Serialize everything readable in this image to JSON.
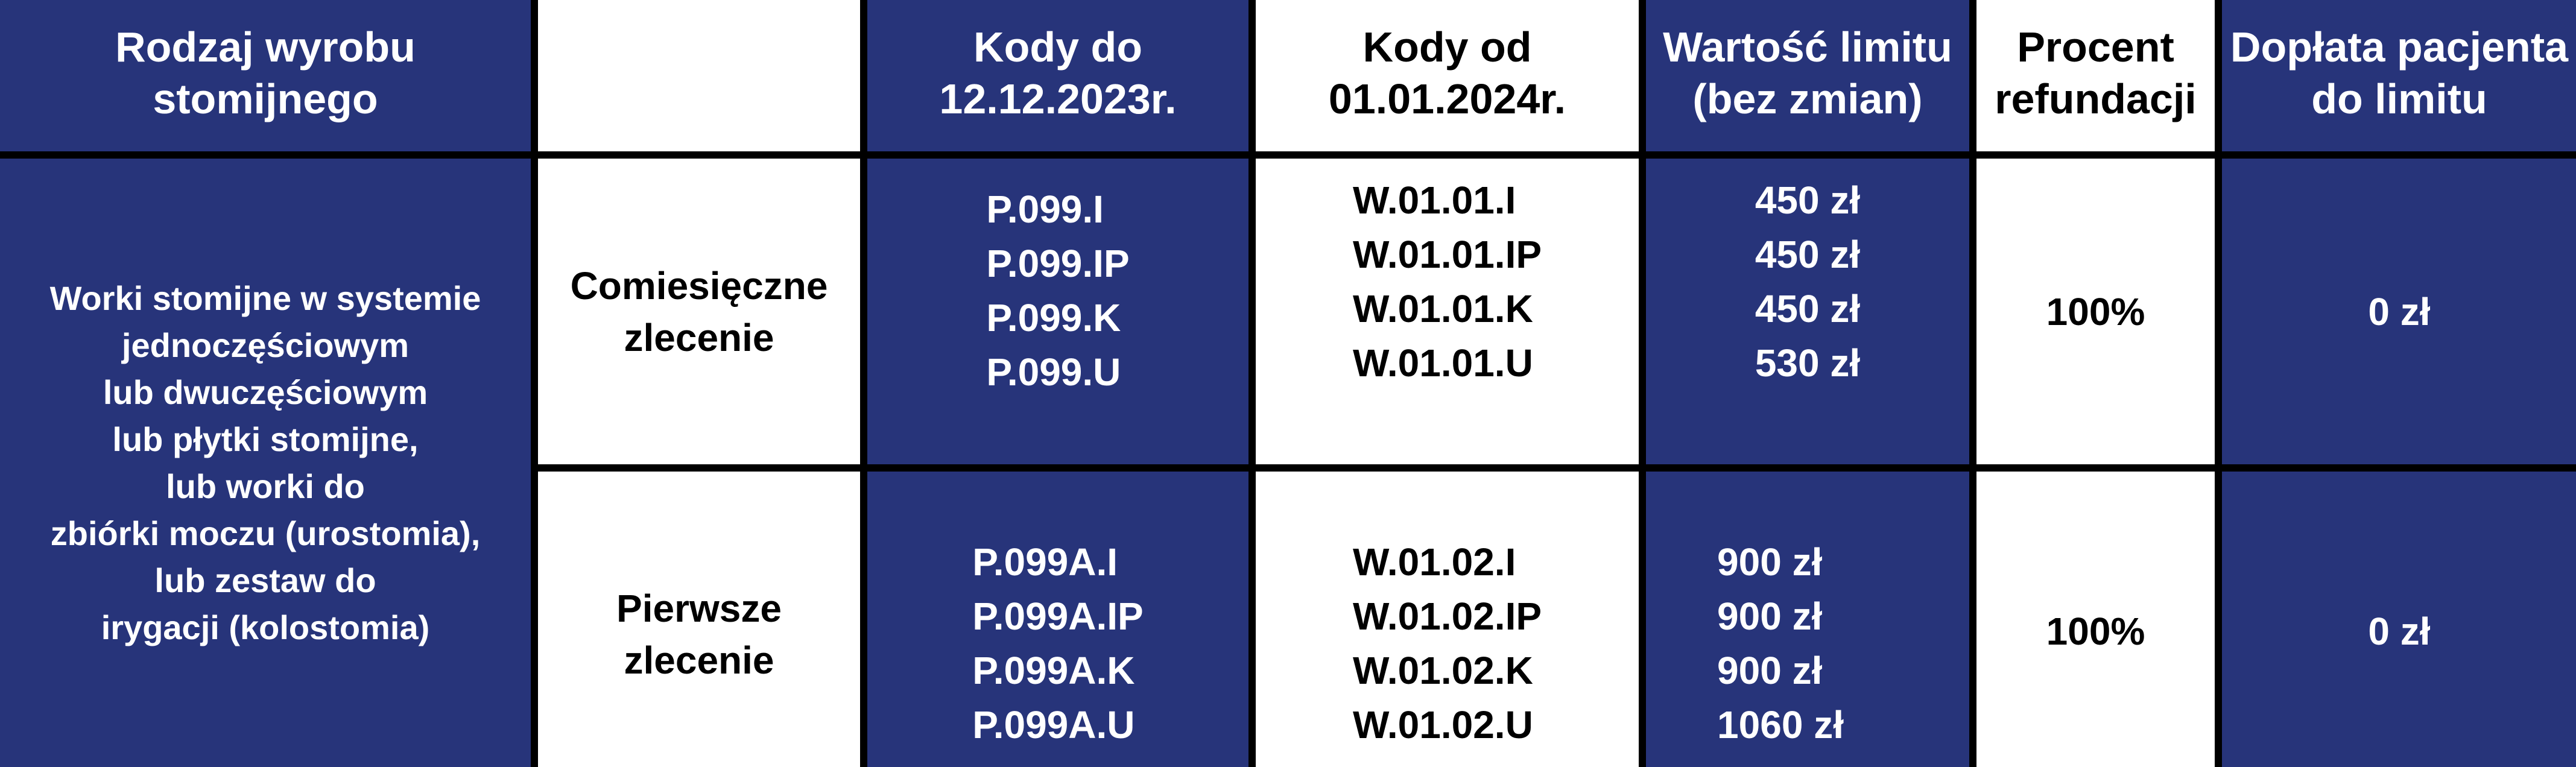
{
  "header": {
    "col1": [
      "Rodzaj wyrobu",
      "stomijnego"
    ],
    "col2": "",
    "col3": [
      "Kody do",
      "12.12.2023r."
    ],
    "col4": [
      "Kody od",
      "01.01.2024r."
    ],
    "col5": [
      "Wartość limitu",
      "(bez zmian)"
    ],
    "col6": [
      "Procent",
      "refundacji"
    ],
    "col7": [
      "Dopłata pacjenta",
      "do limitu"
    ]
  },
  "product_type": [
    "Worki stomijne w systemie",
    "jednoczęściowym",
    "lub dwuczęściowym",
    "lub płytki stomijne,",
    "lub worki do",
    "zbiórki moczu (urostomia),",
    "lub zestaw do",
    "irygacji (kolostomia)"
  ],
  "rows": [
    {
      "order": [
        "Comiesięczne",
        "zlecenie"
      ],
      "old_codes": [
        "P.099.I",
        "P.099.IP",
        "P.099.K",
        "P.099.U"
      ],
      "new_codes": [
        "W.01.01.I",
        "W.01.01.IP",
        "W.01.01.K",
        "W.01.01.U"
      ],
      "limits": [
        "450 zł",
        "450 zł",
        "450 zł",
        "530 zł"
      ],
      "refund": "100%",
      "copay": "0 zł"
    },
    {
      "order": [
        "Pierwsze",
        "zlecenie"
      ],
      "old_codes": [
        "P.099A.I",
        "P.099A.IP",
        "P.099A.K",
        "P.099A.U"
      ],
      "new_codes": [
        "W.01.02.I",
        "W.01.02.IP",
        "W.01.02.K",
        "W.01.02.U"
      ],
      "limits": [
        "900 zł",
        "900 zł",
        "900 zł",
        "1060 zł"
      ],
      "refund": "100%",
      "copay": "0 zł"
    }
  ],
  "colors": {
    "blue": "#27347a",
    "white": "#ffffff",
    "border": "#000000"
  }
}
